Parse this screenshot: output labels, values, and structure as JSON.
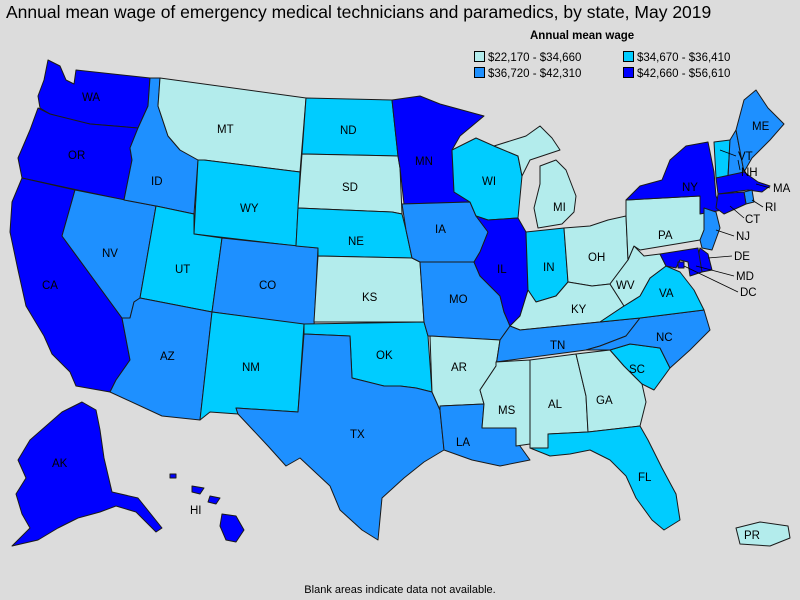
{
  "title": "Annual mean wage of emergency medical technicians and paramedics, by state, May 2019",
  "legend": {
    "title": "Annual mean wage",
    "items": [
      {
        "label": "$22,170 - $34,660",
        "color": "#b3ecec"
      },
      {
        "label": "$34,670 - $36,410",
        "color": "#00ccff"
      },
      {
        "label": "$36,720 - $42,310",
        "color": "#1e90ff"
      },
      {
        "label": "$42,660 - $56,610",
        "color": "#0000ff"
      }
    ]
  },
  "footnote": "Blank areas indicate data not available.",
  "states": {
    "WA": {
      "label": "WA",
      "bin": 3
    },
    "OR": {
      "label": "OR",
      "bin": 3
    },
    "CA": {
      "label": "CA",
      "bin": 3
    },
    "NV": {
      "label": "NV",
      "bin": 2
    },
    "ID": {
      "label": "ID",
      "bin": 2
    },
    "MT": {
      "label": "MT",
      "bin": 0
    },
    "WY": {
      "label": "WY",
      "bin": 1
    },
    "UT": {
      "label": "UT",
      "bin": 1
    },
    "AZ": {
      "label": "AZ",
      "bin": 2
    },
    "CO": {
      "label": "CO",
      "bin": 2
    },
    "NM": {
      "label": "NM",
      "bin": 1
    },
    "ND": {
      "label": "ND",
      "bin": 1
    },
    "SD": {
      "label": "SD",
      "bin": 0
    },
    "NE": {
      "label": "NE",
      "bin": 1
    },
    "KS": {
      "label": "KS",
      "bin": 0
    },
    "OK": {
      "label": "OK",
      "bin": 1
    },
    "TX": {
      "label": "TX",
      "bin": 2
    },
    "MN": {
      "label": "MN",
      "bin": 3
    },
    "IA": {
      "label": "IA",
      "bin": 2
    },
    "MO": {
      "label": "MO",
      "bin": 2
    },
    "AR": {
      "label": "AR",
      "bin": 0
    },
    "LA": {
      "label": "LA",
      "bin": 2
    },
    "WI": {
      "label": "WI",
      "bin": 1
    },
    "IL": {
      "label": "IL",
      "bin": 3
    },
    "MI": {
      "label": "MI",
      "bin": 0
    },
    "IN": {
      "label": "IN",
      "bin": 1
    },
    "OH": {
      "label": "OH",
      "bin": 0
    },
    "KY": {
      "label": "KY",
      "bin": 0
    },
    "TN": {
      "label": "TN",
      "bin": 2
    },
    "MS": {
      "label": "MS",
      "bin": 0
    },
    "AL": {
      "label": "AL",
      "bin": 0
    },
    "GA": {
      "label": "GA",
      "bin": 0
    },
    "FL": {
      "label": "FL",
      "bin": 1
    },
    "SC": {
      "label": "SC",
      "bin": 1
    },
    "NC": {
      "label": "NC",
      "bin": 2
    },
    "VA": {
      "label": "VA",
      "bin": 1
    },
    "WV": {
      "label": "WV",
      "bin": 0
    },
    "PA": {
      "label": "PA",
      "bin": 0
    },
    "NY": {
      "label": "NY",
      "bin": 3
    },
    "VT": {
      "label": "VT",
      "bin": 1
    },
    "NH": {
      "label": "NH",
      "bin": 2
    },
    "ME": {
      "label": "ME",
      "bin": 2
    },
    "MA": {
      "label": "MA",
      "bin": 3
    },
    "RI": {
      "label": "RI",
      "bin": 2
    },
    "CT": {
      "label": "CT",
      "bin": 3
    },
    "NJ": {
      "label": "NJ",
      "bin": 2
    },
    "DE": {
      "label": "DE",
      "bin": 3
    },
    "MD": {
      "label": "MD",
      "bin": 3
    },
    "DC": {
      "label": "DC",
      "bin": 3
    },
    "AK": {
      "label": "AK",
      "bin": 3
    },
    "HI": {
      "label": "HI",
      "bin": 3
    },
    "PR": {
      "label": "PR",
      "bin": 0
    }
  }
}
